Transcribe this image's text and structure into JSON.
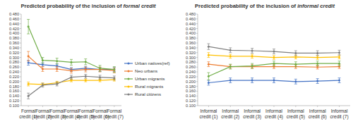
{
  "chart_data": [
    {
      "type": "line",
      "title": "Predicted probability of the inclusion of formal credit",
      "categories": [
        "Formal credit (1)",
        "Formal credit (2)",
        "Formal credit (3)",
        "Formal credit (4)",
        "Formal credit (5)",
        "Formal credit (6)",
        "Formal credit (7)"
      ],
      "series": [
        {
          "name": "Urban natives(ref)",
          "color": "#4472c4",
          "values": [
            0.278,
            0.27,
            0.265,
            0.25,
            0.255,
            0.25,
            0.25
          ],
          "errors": [
            0.01,
            0.008,
            0.008,
            0.008,
            0.008,
            0.008,
            0.008
          ]
        },
        {
          "name": "Neo urbans",
          "color": "#ed7d31",
          "values": [
            0.305,
            0.252,
            0.252,
            0.245,
            0.25,
            0.25,
            0.246
          ],
          "errors": [
            0.02,
            0.01,
            0.01,
            0.01,
            0.01,
            0.01,
            0.01
          ]
        },
        {
          "name": "Urban migrants",
          "color": "#70ad47",
          "values": [
            0.428,
            0.288,
            0.285,
            0.28,
            0.282,
            0.255,
            0.25
          ],
          "errors": [
            0.03,
            0.012,
            0.012,
            0.012,
            0.012,
            0.012,
            0.012
          ]
        },
        {
          "name": "Rural migrants",
          "color": "#ffc000",
          "values": [
            0.19,
            0.188,
            0.195,
            0.205,
            0.205,
            0.205,
            0.208
          ],
          "errors": [
            0.008,
            0.006,
            0.006,
            0.006,
            0.006,
            0.006,
            0.006
          ]
        },
        {
          "name": "Rural citizens",
          "color": "#7f7f7f",
          "values": [
            0.14,
            0.185,
            0.19,
            0.218,
            0.222,
            0.218,
            0.215
          ],
          "errors": [
            0.012,
            0.008,
            0.008,
            0.008,
            0.008,
            0.008,
            0.008
          ]
        }
      ],
      "ylim": [
        0.1,
        0.48
      ],
      "yticks": [
        {
          "value": 0.1,
          "label": "0.100"
        },
        {
          "value": 0.12,
          "label": "0.120"
        },
        {
          "value": 0.14,
          "label": "0.140"
        },
        {
          "value": 0.16,
          "label": "0.160"
        },
        {
          "value": 0.18,
          "label": "0.180"
        },
        {
          "value": 0.2,
          "label": "0.200"
        },
        {
          "value": 0.22,
          "label": "0.220"
        },
        {
          "value": 0.24,
          "label": "0.240"
        },
        {
          "value": 0.26,
          "label": "0.260"
        },
        {
          "value": 0.28,
          "label": "0.280"
        },
        {
          "value": 0.3,
          "label": "0.300"
        },
        {
          "value": 0.32,
          "label": "0.320"
        },
        {
          "value": 0.34,
          "label": "0.340"
        },
        {
          "value": 0.36,
          "label": "0.360"
        },
        {
          "value": 0.38,
          "label": "0.380"
        },
        {
          "value": 0.4,
          "label": "0.400"
        },
        {
          "value": 0.42,
          "label": "0.420"
        },
        {
          "value": 0.44,
          "label": "0.440"
        },
        {
          "value": 0.46,
          "label": "0.460"
        },
        {
          "value": 0.48,
          "label": "0.480"
        }
      ],
      "grid": false,
      "marker": "circle",
      "legend": "right"
    },
    {
      "type": "line",
      "title": "Predicted probability of the inclusion of informal credit",
      "categories": [
        "Informal credit (1)",
        "Informal credit (2)",
        "Informal credit (3)",
        "Informal credit (4)",
        "Informal credit (5)",
        "Informal credit (6)",
        "Informal credit (7)"
      ],
      "series": [
        {
          "color": "#4472c4",
          "values": [
            0.195,
            0.205,
            0.205,
            0.205,
            0.2,
            0.202,
            0.205
          ],
          "errors": [
            0.01,
            0.01,
            0.01,
            0.01,
            0.01,
            0.01,
            0.01
          ]
        },
        {
          "color": "#ed7d31",
          "values": [
            0.272,
            0.262,
            0.262,
            0.262,
            0.262,
            0.26,
            0.262
          ],
          "errors": [
            0.01,
            0.008,
            0.008,
            0.008,
            0.008,
            0.008,
            0.008
          ]
        },
        {
          "color": "#70ad47",
          "values": [
            0.222,
            0.262,
            0.265,
            0.275,
            0.272,
            0.275,
            0.275
          ],
          "errors": [
            0.015,
            0.01,
            0.01,
            0.01,
            0.01,
            0.01,
            0.01
          ]
        },
        {
          "color": "#ffc000",
          "values": [
            0.31,
            0.305,
            0.305,
            0.3,
            0.302,
            0.3,
            0.302
          ],
          "errors": [
            0.01,
            0.008,
            0.008,
            0.008,
            0.008,
            0.008,
            0.008
          ]
        },
        {
          "color": "#7f7f7f",
          "values": [
            0.345,
            0.33,
            0.328,
            0.325,
            0.318,
            0.318,
            0.32
          ],
          "errors": [
            0.012,
            0.01,
            0.01,
            0.01,
            0.01,
            0.01,
            0.01
          ]
        }
      ],
      "ylim": [
        0.1,
        0.48
      ],
      "yticks": [
        {
          "value": 0.1,
          "label": "0.100"
        },
        {
          "value": 0.12,
          "label": "0.120"
        },
        {
          "value": 0.14,
          "label": "0.140"
        },
        {
          "value": 0.16,
          "label": "0.160"
        },
        {
          "value": 0.18,
          "label": "0.180"
        },
        {
          "value": 0.2,
          "label": "0.200"
        },
        {
          "value": 0.22,
          "label": "0.220"
        },
        {
          "value": 0.24,
          "label": "0.240"
        },
        {
          "value": 0.26,
          "label": "0.260"
        },
        {
          "value": 0.28,
          "label": "0.280"
        },
        {
          "value": 0.3,
          "label": "0.300"
        },
        {
          "value": 0.32,
          "label": "0.320"
        },
        {
          "value": 0.34,
          "label": "0.340"
        },
        {
          "value": 0.36,
          "label": "0.360"
        },
        {
          "value": 0.38,
          "label": "0.380"
        },
        {
          "value": 0.4,
          "label": "0.400"
        },
        {
          "value": 0.42,
          "label": "0.420"
        },
        {
          "value": 0.44,
          "label": "0.440"
        },
        {
          "value": 0.46,
          "label": "0.460"
        },
        {
          "value": 0.48,
          "label": "0.480"
        }
      ],
      "grid": false,
      "marker": "circle"
    }
  ]
}
